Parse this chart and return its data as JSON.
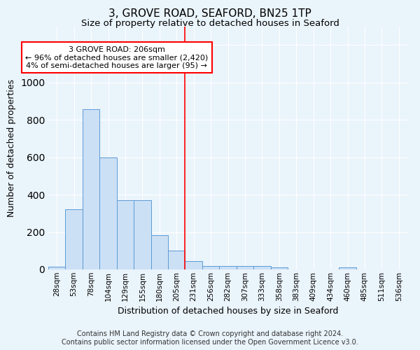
{
  "title": "3, GROVE ROAD, SEAFORD, BN25 1TP",
  "subtitle": "Size of property relative to detached houses in Seaford",
  "xlabel": "Distribution of detached houses by size in Seaford",
  "ylabel": "Number of detached properties",
  "bin_labels": [
    "28sqm",
    "53sqm",
    "78sqm",
    "104sqm",
    "129sqm",
    "155sqm",
    "180sqm",
    "205sqm",
    "231sqm",
    "256sqm",
    "282sqm",
    "307sqm",
    "333sqm",
    "358sqm",
    "383sqm",
    "409sqm",
    "434sqm",
    "460sqm",
    "485sqm",
    "511sqm",
    "536sqm"
  ],
  "bar_heights": [
    15,
    320,
    855,
    600,
    370,
    370,
    185,
    100,
    45,
    20,
    18,
    18,
    18,
    10,
    0,
    0,
    0,
    10,
    0,
    0,
    0
  ],
  "bar_color": "#cce0f5",
  "bar_edge_color": "#5b9bd5",
  "annotation_line1": "3 GROVE ROAD: 206sqm",
  "annotation_line2": "← 96% of detached houses are smaller (2,420)",
  "annotation_line3": "4% of semi-detached houses are larger (95) →",
  "annotation_box_color": "white",
  "annotation_box_edge_color": "red",
  "vline_color": "red",
  "footnote1": "Contains HM Land Registry data © Crown copyright and database right 2024.",
  "footnote2": "Contains public sector information licensed under the Open Government Licence v3.0.",
  "ylim": [
    0,
    1300
  ],
  "background_color": "#eaf4fb",
  "plot_background_color": "#eaf4fb",
  "grid_color": "white",
  "title_fontsize": 11,
  "subtitle_fontsize": 9.5,
  "ylabel_fontsize": 9,
  "xlabel_fontsize": 9,
  "tick_fontsize": 7.5,
  "annotation_fontsize": 8,
  "footnote_fontsize": 7
}
